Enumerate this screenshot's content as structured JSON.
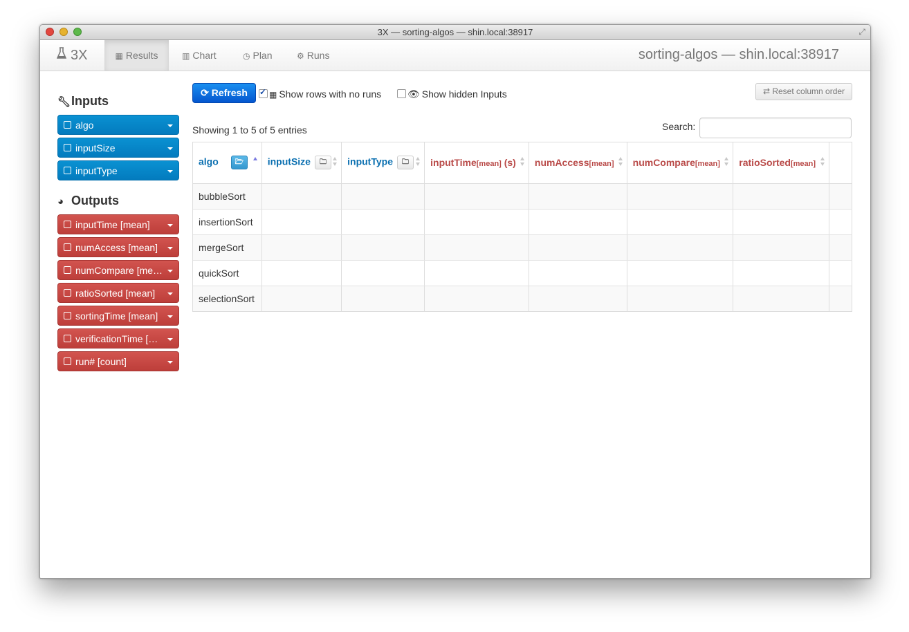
{
  "window": {
    "title": "3X — sorting-algos — shin.local:38917"
  },
  "navbar": {
    "brand": "3X",
    "tabs": [
      {
        "label": "Results",
        "icon": "table-icon",
        "active": true
      },
      {
        "label": "Chart",
        "icon": "bar-chart-icon"
      },
      {
        "label": "Plan",
        "icon": "clock-icon"
      },
      {
        "label": "Runs",
        "icon": "gears-icon"
      }
    ],
    "page_title": "sorting-algos — shin.local:38917"
  },
  "sidebar": {
    "inputs_title": "Inputs",
    "inputs": [
      "algo",
      "inputSize",
      "inputType"
    ],
    "outputs_title": "Outputs",
    "outputs": [
      "inputTime [mean]",
      "numAccess [mean]",
      "numCompare [mean]",
      "ratioSorted [mean]",
      "sortingTime [mean]",
      "verificationTime [mean]",
      "run# [count]"
    ],
    "input_color": "#0a85c6",
    "output_color": "#c7494c"
  },
  "toolbar": {
    "refresh": "Refresh",
    "show_rows_no_runs": "Show rows with no runs",
    "show_hidden_inputs": "Show hidden Inputs",
    "reset_column_order": "Reset column order"
  },
  "table": {
    "info": "Showing 1 to 5 of 5 entries",
    "search_label": "Search:",
    "search_value": "",
    "columns": [
      {
        "name": "algo",
        "sub": "",
        "unit": ""
      },
      {
        "name": "inputSize",
        "sub": "",
        "unit": ""
      },
      {
        "name": "inputType",
        "sub": "",
        "unit": ""
      },
      {
        "name": "inputTime",
        "sub": "[mean]",
        "unit": " (s)"
      },
      {
        "name": "numAccess",
        "sub": "[mean]",
        "unit": ""
      },
      {
        "name": "numCompare",
        "sub": "[mean]",
        "unit": ""
      },
      {
        "name": "ratioSorted",
        "sub": "[mean]",
        "unit": ""
      }
    ],
    "rows": [
      [
        "bubbleSort",
        "",
        "",
        "",
        "",
        "",
        ""
      ],
      [
        "insertionSort",
        "",
        "",
        "",
        "",
        "",
        ""
      ],
      [
        "mergeSort",
        "",
        "",
        "",
        "",
        "",
        ""
      ],
      [
        "quickSort",
        "",
        "",
        "",
        "",
        "",
        ""
      ],
      [
        "selectionSort",
        "",
        "",
        "",
        "",
        "",
        ""
      ]
    ]
  }
}
